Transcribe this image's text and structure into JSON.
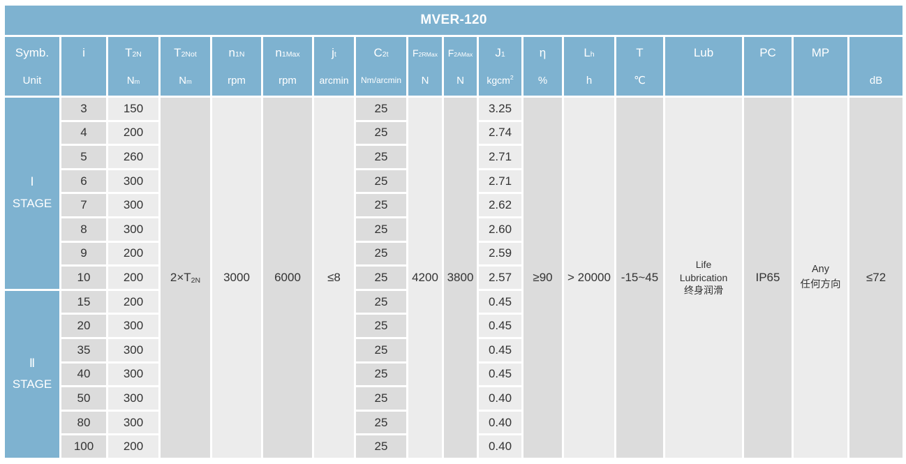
{
  "title": "MVER-120",
  "colors": {
    "header_blue": "#7eb2d0",
    "column_dark": "#dcdcdc",
    "column_light": "#ececec",
    "grid_white": "#ffffff",
    "text": "#333333"
  },
  "columns": [
    {
      "id": "symb",
      "label": "Symb.",
      "unit": "Unit"
    },
    {
      "id": "i",
      "label": "i",
      "unit": ""
    },
    {
      "id": "t2n",
      "label": "T_{2N}",
      "unit": "N_{m}"
    },
    {
      "id": "t2not",
      "label": "T_{2Not}",
      "unit": "N_{m}",
      "value": "2×T_{2N}"
    },
    {
      "id": "n1n",
      "label": "n_{1N}",
      "unit": "rpm",
      "value": "3000"
    },
    {
      "id": "n1max",
      "label": "n_{1Max}",
      "unit": "rpm",
      "value": "6000"
    },
    {
      "id": "jt",
      "label": "j_{t}",
      "unit": "arcmin",
      "value": "≤8"
    },
    {
      "id": "c2t",
      "label": "C_{2t}",
      "unit": "Nm/arcmin"
    },
    {
      "id": "f2rmax",
      "label": "F_{2RMax}",
      "unit": "N",
      "value": "4200"
    },
    {
      "id": "f2amax",
      "label": "F_{2AMax}",
      "unit": "N",
      "value": "3800"
    },
    {
      "id": "j1",
      "label": "J_{1}",
      "unit": "kgcm^{2}"
    },
    {
      "id": "eta",
      "label": "η",
      "unit": "%",
      "value": "≥90"
    },
    {
      "id": "lh",
      "label": "L_{h}",
      "unit": "h",
      "value": "> 20000"
    },
    {
      "id": "t",
      "label": "T",
      "unit": "℃",
      "value": "-15~45"
    },
    {
      "id": "lub",
      "label": "Lub",
      "unit": "",
      "value": "Life\nLubrication\n终身润滑"
    },
    {
      "id": "pc",
      "label": "PC",
      "unit": "",
      "value": "IP65"
    },
    {
      "id": "mp",
      "label": "MP",
      "unit": "",
      "value": "Any\n任何方向"
    },
    {
      "id": "db",
      "label": "",
      "unit": "dB",
      "value": "≤72"
    }
  ],
  "stages": [
    {
      "label": "Ⅰ\nSTAGE",
      "rows": [
        {
          "i": "3",
          "t2n": "150",
          "c2t": "25",
          "j1": "3.25"
        },
        {
          "i": "4",
          "t2n": "200",
          "c2t": "25",
          "j1": "2.74"
        },
        {
          "i": "5",
          "t2n": "260",
          "c2t": "25",
          "j1": "2.71"
        },
        {
          "i": "6",
          "t2n": "300",
          "c2t": "25",
          "j1": "2.71"
        },
        {
          "i": "7",
          "t2n": "300",
          "c2t": "25",
          "j1": "2.62"
        },
        {
          "i": "8",
          "t2n": "300",
          "c2t": "25",
          "j1": "2.60"
        },
        {
          "i": "9",
          "t2n": "200",
          "c2t": "25",
          "j1": "2.59"
        },
        {
          "i": "10",
          "t2n": "200",
          "c2t": "25",
          "j1": "2.57"
        }
      ]
    },
    {
      "label": "Ⅱ\nSTAGE",
      "rows": [
        {
          "i": "15",
          "t2n": "200",
          "c2t": "25",
          "j1": "0.45"
        },
        {
          "i": "20",
          "t2n": "300",
          "c2t": "25",
          "j1": "0.45"
        },
        {
          "i": "35",
          "t2n": "300",
          "c2t": "25",
          "j1": "0.45"
        },
        {
          "i": "40",
          "t2n": "300",
          "c2t": "25",
          "j1": "0.45"
        },
        {
          "i": "50",
          "t2n": "300",
          "c2t": "25",
          "j1": "0.40"
        },
        {
          "i": "80",
          "t2n": "300",
          "c2t": "25",
          "j1": "0.40"
        },
        {
          "i": "100",
          "t2n": "200",
          "c2t": "25",
          "j1": "0.40"
        }
      ]
    }
  ]
}
